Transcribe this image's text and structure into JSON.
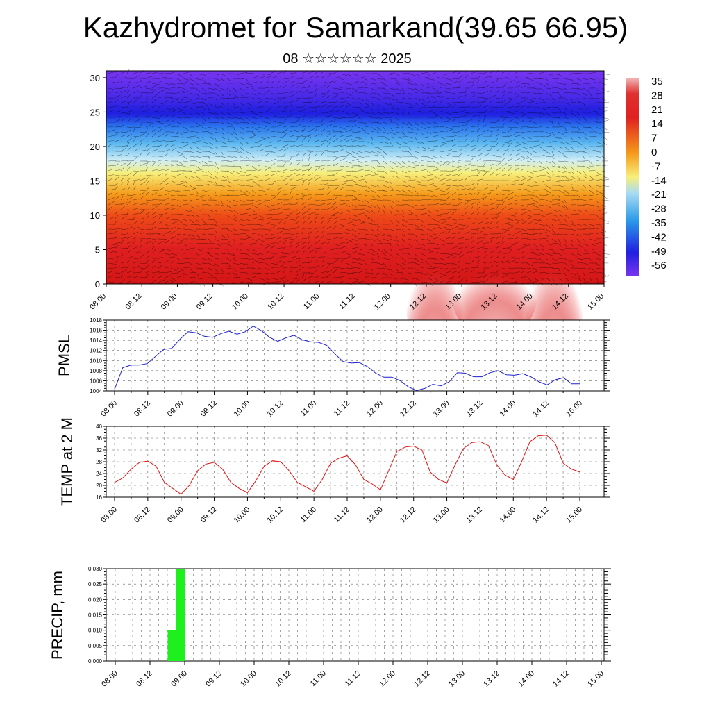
{
  "page": {
    "title": "Kazhydromet for Samarkand(39.65 66.95)",
    "subtitle": "08 ☆☆☆☆☆☆ 2025"
  },
  "chart_data": [
    {
      "type": "heatmap",
      "title": "Kazhydromet for Samarkand(39.65 66.95)",
      "subtitle": "08 ☆☆☆☆☆☆ 2025",
      "x_labels": [
        "08.00",
        "08.12",
        "09.00",
        "09.12",
        "10.00",
        "10.12",
        "11.00",
        "11.12",
        "12.00",
        "12.12",
        "13.00",
        "13.12",
        "14.00",
        "14.12",
        "15.00"
      ],
      "y_ticks": [
        0,
        5,
        10,
        15,
        20,
        25,
        30
      ],
      "ylim": [
        0,
        31
      ],
      "colorbar_labels": [
        "35",
        "28",
        "21",
        "14",
        "7",
        "0",
        "-7",
        "-14",
        "-21",
        "-28",
        "-35",
        "-42",
        "-49",
        "-56"
      ],
      "colors": {
        "high": "#f2b8b8",
        "red": "#e02020",
        "orange": "#f59a1a",
        "yellow": "#f7ef7a",
        "lightblue": "#a9dcf2",
        "blue": "#2a73ee",
        "deepblue": "#2020e0",
        "violet": "#7a35f0"
      },
      "legend": "right"
    },
    {
      "type": "line",
      "ylabel": "PMSL",
      "x_labels": [
        "08.00",
        "08.12",
        "09.00",
        "09.12",
        "10.00",
        "10.12",
        "11.00",
        "11.12",
        "12.00",
        "12.12",
        "13.00",
        "13.12",
        "14.00",
        "14.12",
        "15.00"
      ],
      "y_ticks": [
        1004,
        1006,
        1008,
        1010,
        1012,
        1014,
        1016,
        1018
      ],
      "ylim": [
        1004,
        1018
      ],
      "color": "#1e1ed2",
      "values": [
        1004.3,
        1008.6,
        1009.1,
        1009.1,
        1009.4,
        1010.8,
        1012.2,
        1012.4,
        1014.2,
        1015.7,
        1015.5,
        1014.8,
        1014.6,
        1015.3,
        1015.8,
        1015.2,
        1015.7,
        1016.8,
        1015.9,
        1014.6,
        1013.8,
        1014.5,
        1015.0,
        1014.1,
        1013.7,
        1013.6,
        1013.0,
        1011.3,
        1009.8,
        1009.5,
        1009.6,
        1008.8,
        1007.5,
        1006.7,
        1006.7,
        1006.0,
        1004.8,
        1004.1,
        1004.5,
        1005.3,
        1005.0,
        1005.8,
        1007.6,
        1007.5,
        1006.8,
        1006.8,
        1007.6,
        1008.0,
        1007.2,
        1007.1,
        1007.4,
        1006.8,
        1005.8,
        1005.2,
        1006.2,
        1006.6,
        1005.4,
        1005.4
      ]
    },
    {
      "type": "line",
      "ylabel": "TEMP at 2 M",
      "x_labels": [
        "08.00",
        "08.12",
        "09.00",
        "09.12",
        "10.00",
        "10.12",
        "11.00",
        "11.12",
        "12.00",
        "12.12",
        "13.00",
        "13.12",
        "14.00",
        "14.12",
        "15.00"
      ],
      "y_ticks": [
        16,
        20,
        24,
        28,
        32,
        36,
        40
      ],
      "ylim": [
        16,
        40
      ],
      "color": "#e01414",
      "values": [
        21.0,
        22.5,
        25.5,
        27.8,
        28.2,
        26.5,
        21.0,
        19.0,
        17.0,
        20.0,
        25.0,
        27.2,
        27.8,
        25.5,
        21.0,
        19.0,
        17.5,
        21.5,
        26.5,
        28.3,
        28.0,
        25.0,
        21.0,
        19.5,
        18.0,
        22.0,
        27.5,
        29.2,
        30.0,
        27.0,
        22.0,
        20.5,
        18.5,
        25.0,
        31.5,
        33.0,
        33.3,
        32.0,
        24.5,
        22.0,
        20.8,
        27.0,
        32.5,
        34.5,
        34.8,
        33.5,
        27.0,
        23.5,
        22.0,
        28.0,
        34.8,
        36.8,
        37.0,
        34.5,
        27.5,
        25.5,
        24.5
      ]
    },
    {
      "type": "bar",
      "ylabel": "PRECIP, mm",
      "x_labels": [
        "08.00",
        "08.12",
        "09.00",
        "09.12",
        "10.00",
        "10.12",
        "11.00",
        "11.12",
        "12.00",
        "12.12",
        "13.00",
        "13.12",
        "14.00",
        "14.12",
        "15.00"
      ],
      "y_tick_labels": [
        "0.000",
        "0.005",
        "0.010",
        "0.015",
        "0.020",
        "0.025",
        "0.030"
      ],
      "ylim": [
        0,
        0.03
      ],
      "color": "#1ef01e",
      "bars": [
        {
          "x_hours": 21,
          "value": 0.01
        },
        {
          "x_hours": 24,
          "value": 0.03
        }
      ]
    }
  ]
}
